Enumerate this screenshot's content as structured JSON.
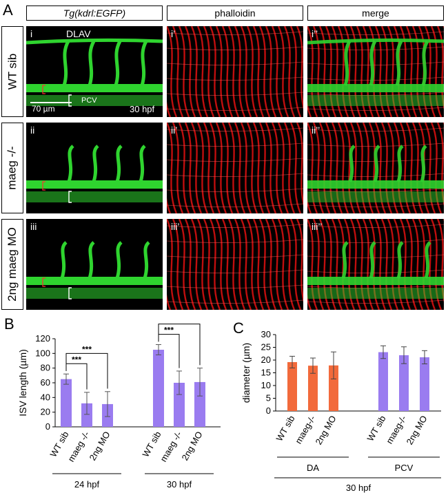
{
  "figure": {
    "panel_letters": {
      "A": "A",
      "B": "B",
      "C": "C"
    },
    "columns": [
      "Tg(kdrl:EGFP)",
      "phalloidin",
      "merge"
    ],
    "rows": [
      "WT sib",
      "maeg -/-",
      "2ng maeg MO"
    ],
    "sub_labels": [
      [
        "i",
        "i’",
        "i’’"
      ],
      [
        "ii",
        "ii’",
        "ii’’"
      ],
      [
        "iii",
        "iii’",
        "iii’’"
      ]
    ],
    "annotations": {
      "dlav": "DLAV",
      "pcv": "PCV",
      "scale_bar": "70 µm",
      "stage": "30 hpf"
    },
    "colors": {
      "gfp": "#2fd42f",
      "phalloidin": "#e01010",
      "bar_purple": "#9a7cf0",
      "bar_orange": "#f26a3b"
    }
  },
  "chart_data": [
    {
      "type": "bar",
      "panel": "B",
      "ylabel": "ISV length (µm)",
      "ylim": [
        0,
        120
      ],
      "yticks": [
        0,
        20,
        40,
        60,
        80,
        100,
        120
      ],
      "groups": [
        {
          "label": "24 hpf",
          "categories": [
            "WT sib",
            "maeg -/-",
            "2ng MO"
          ],
          "values": [
            65,
            32,
            31
          ],
          "errors": [
            7,
            15,
            17
          ]
        },
        {
          "label": "30 hpf",
          "categories": [
            "WT sib",
            "maeg -/-",
            "2ng MO"
          ],
          "values": [
            105,
            60,
            61
          ],
          "errors": [
            7,
            16,
            19
          ]
        }
      ],
      "significance": "***",
      "color": "#9a7cf0"
    },
    {
      "type": "bar",
      "panel": "C",
      "ylabel": "diameter (µm)",
      "ylim": [
        0,
        30
      ],
      "yticks": [
        0,
        5,
        10,
        15,
        20,
        25,
        30
      ],
      "groups": [
        {
          "label": "DA",
          "categories": [
            "WT sib",
            "maeg-/-",
            "2ng MO"
          ],
          "values": [
            19.2,
            17.8,
            17.9
          ],
          "errors": [
            2.3,
            3.0,
            5.3
          ],
          "color": "#f26a3b"
        },
        {
          "label": "PCV",
          "categories": [
            "WT sib",
            "maeg-/-",
            "2ng MO"
          ],
          "values": [
            23.1,
            21.9,
            21.1
          ],
          "errors": [
            2.5,
            3.3,
            2.6
          ],
          "color": "#9a7cf0"
        }
      ],
      "footer": "30 hpf"
    }
  ]
}
